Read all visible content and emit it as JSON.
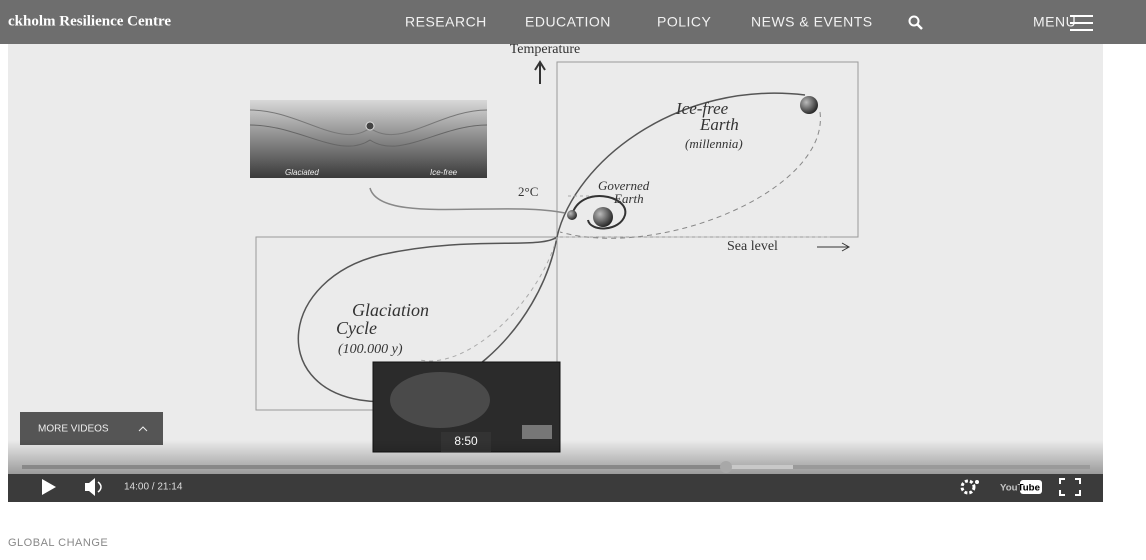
{
  "header": {
    "site_title": "ckholm Resilience Centre",
    "nav": [
      "RESEARCH",
      "EDUCATION",
      "POLICY",
      "NEWS & EVENTS"
    ],
    "menu": "MENU"
  },
  "video": {
    "diagram": {
      "y_axis": "Temperature",
      "x_axis": "Sea level",
      "warming": "2°C",
      "landscape_labels": [
        "Glaciated",
        "Ice-free"
      ],
      "states": [
        {
          "name": [
            "Ice-free",
            "Earth"
          ],
          "period": "(millennia)"
        },
        {
          "name": [
            "Governed",
            "Earth"
          ]
        },
        {
          "name": [
            "Glaciation",
            "Cycle"
          ],
          "period": "(100.000 y)"
        }
      ]
    },
    "more_videos": "MORE VIDEOS",
    "preview_time": "8:50",
    "time": "14:00 / 21:14",
    "youtube": "YouTube"
  },
  "section": "GLOBAL CHANGE"
}
